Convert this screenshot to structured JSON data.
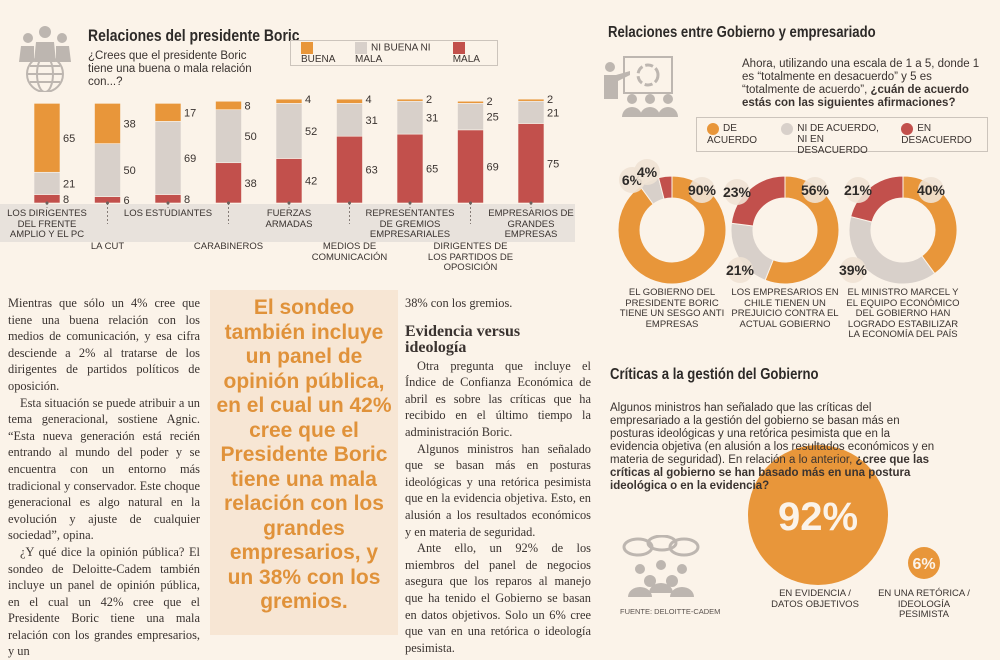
{
  "chart_data": [
    {
      "type": "bar",
      "stacked": true,
      "title": "Relaciones del presidente Boric",
      "subtitle": "¿Crees que el presidente Boric tiene una buena o mala relación con...?",
      "legend": [
        "BUENA",
        "NI BUENA NI MALA",
        "MALA"
      ],
      "legend_placement": "top-right",
      "colors": {
        "BUENA": "#e8963a",
        "NI BUENA NI MALA": "#d8d0ca",
        "MALA": "#c2504c"
      },
      "categories": [
        "LOS DIRIGENTES DEL FRENTE AMPLIO Y EL PC",
        "LA CUT",
        "LOS ESTUDIANTES",
        "CARABINEROS",
        "FUERZAS ARMADAS",
        "MEDIOS DE COMUNICACIÓN",
        "REPRESENTANTES DE GREMIOS EMPRESARIALES",
        "DIRIGENTES DE LOS PARTIDOS DE OPOSICIÓN",
        "EMPRESARIOS DE GRANDES EMPRESAS"
      ],
      "series": [
        {
          "name": "BUENA",
          "values": [
            65,
            38,
            17,
            8,
            4,
            4,
            2,
            2,
            2
          ]
        },
        {
          "name": "NI BUENA NI MALA",
          "values": [
            21,
            50,
            69,
            50,
            52,
            31,
            31,
            25,
            21
          ]
        },
        {
          "name": "MALA",
          "values": [
            8,
            6,
            8,
            38,
            42,
            63,
            65,
            69,
            75
          ]
        }
      ]
    },
    {
      "type": "pie",
      "donut": true,
      "title": "Relaciones entre Gobierno y empresariado",
      "subtitle_plain": "Ahora, utilizando una escala de 1 a 5, donde 1 es “totalmente en desacuerdo” y 5 es “totalmente de acuerdo”,",
      "subtitle_bold": "¿cuán de acuerdo estás con las siguientes afirmaciones?",
      "legend": [
        "DE ACUERDO",
        "NI DE ACUERDO, NI EN DESACUERDO",
        "EN DESACUERDO"
      ],
      "colors": [
        "#e8963a",
        "#d8d0ca",
        "#c2504c"
      ],
      "charts": [
        {
          "label": "EL GOBIERNO DEL PRESIDENTE BORIC TIENE UN SESGO ANTI EMPRESAS",
          "values": [
            90,
            6,
            4
          ]
        },
        {
          "label": "LOS EMPRESARIOS EN CHILE TIENEN UN PREJUICIO CONTRA EL ACTUAL GOBIERNO",
          "values": [
            56,
            21,
            23
          ]
        },
        {
          "label": "EL MINISTRO MARCEL Y EL EQUIPO ECONÓMICO DEL GOBIERNO HAN LOGRADO ESTABILIZAR LA ECONOMÍA DEL PAÍS",
          "values": [
            40,
            39,
            21
          ]
        }
      ]
    },
    {
      "type": "bubble",
      "title": "Críticas a la gestión del Gobierno",
      "intro_plain": "Algunos ministros han señalado que las críticas del empresariado a la gestión del gobierno se basan más en posturas ideológicas y una retórica pesimista que en la evidencia objetiva (en alusión a los resultados económicos y en materia de seguridad). En relación a lo anterior,",
      "intro_bold": "¿cree que las críticas al gobierno se han basado más en una postura ideológica o en la evidencia?",
      "items": [
        {
          "label": "EN EVIDENCIA / DATOS OBJETIVOS",
          "value": 92,
          "display": "92%"
        },
        {
          "label": "EN UNA RETÓRICA / IDEOLOGÍA PESIMISTA",
          "value": 6,
          "display": "6%"
        }
      ],
      "source": "FUENTE: DELOITTE-CADEM"
    }
  ],
  "article": {
    "col1": [
      "Mientras que sólo un 4% cree que tiene una buena relación con los medios de comunicación, y esa cifra desciende a 2% al tratarse de los dirigentes de partidos políticos de oposición.",
      "Esta situación se puede atribuir a un tema generacional, sostiene Agnic. “Esta nueva generación está recién entrando al mundo del poder y se encuentra con un entorno más tradicional y conservador. Este choque generacional es algo natural en la evolución y ajuste de cualquier sociedad”, opina.",
      "¿Y qué dice la opinión pública? El sondeo de Deloitte-Cadem también incluye un panel de opinión pública, en el cual un 42% cree que el Presidente Boric tiene una mala relación con los grandes empresarios, y un"
    ],
    "pullquote": "El sondeo también incluye un panel de opinión pública, en el cual un 42% cree que el Presidente Boric tiene una mala relación con los grandes empresarios, y un 38% con los gremios.",
    "col3_lead": "38% con los gremios.",
    "subhead": "Evidencia versus ideología",
    "col3": [
      "Otra pregunta que incluye el Índice de Confianza Económica de abril es sobre las críticas que ha recibido en el último tiempo la administración Boric.",
      "Algunos ministros han señalado que se basan más en posturas ideológicas y una retórica pesimista que en la evidencia objetiva. Esto, en alusión a los resultados económicos y en materia de seguridad.",
      "Ante ello, un 92% de los miembros del panel de negocios asegura que los reparos al manejo que ha tenido el Gobierno se basan en datos objetivos. Solo un 6% cree que van en una retórica o ideología pesimista."
    ]
  },
  "icons": [
    "people-globe-icon",
    "presenter-icon",
    "speech-bubbles-crowd-icon"
  ]
}
